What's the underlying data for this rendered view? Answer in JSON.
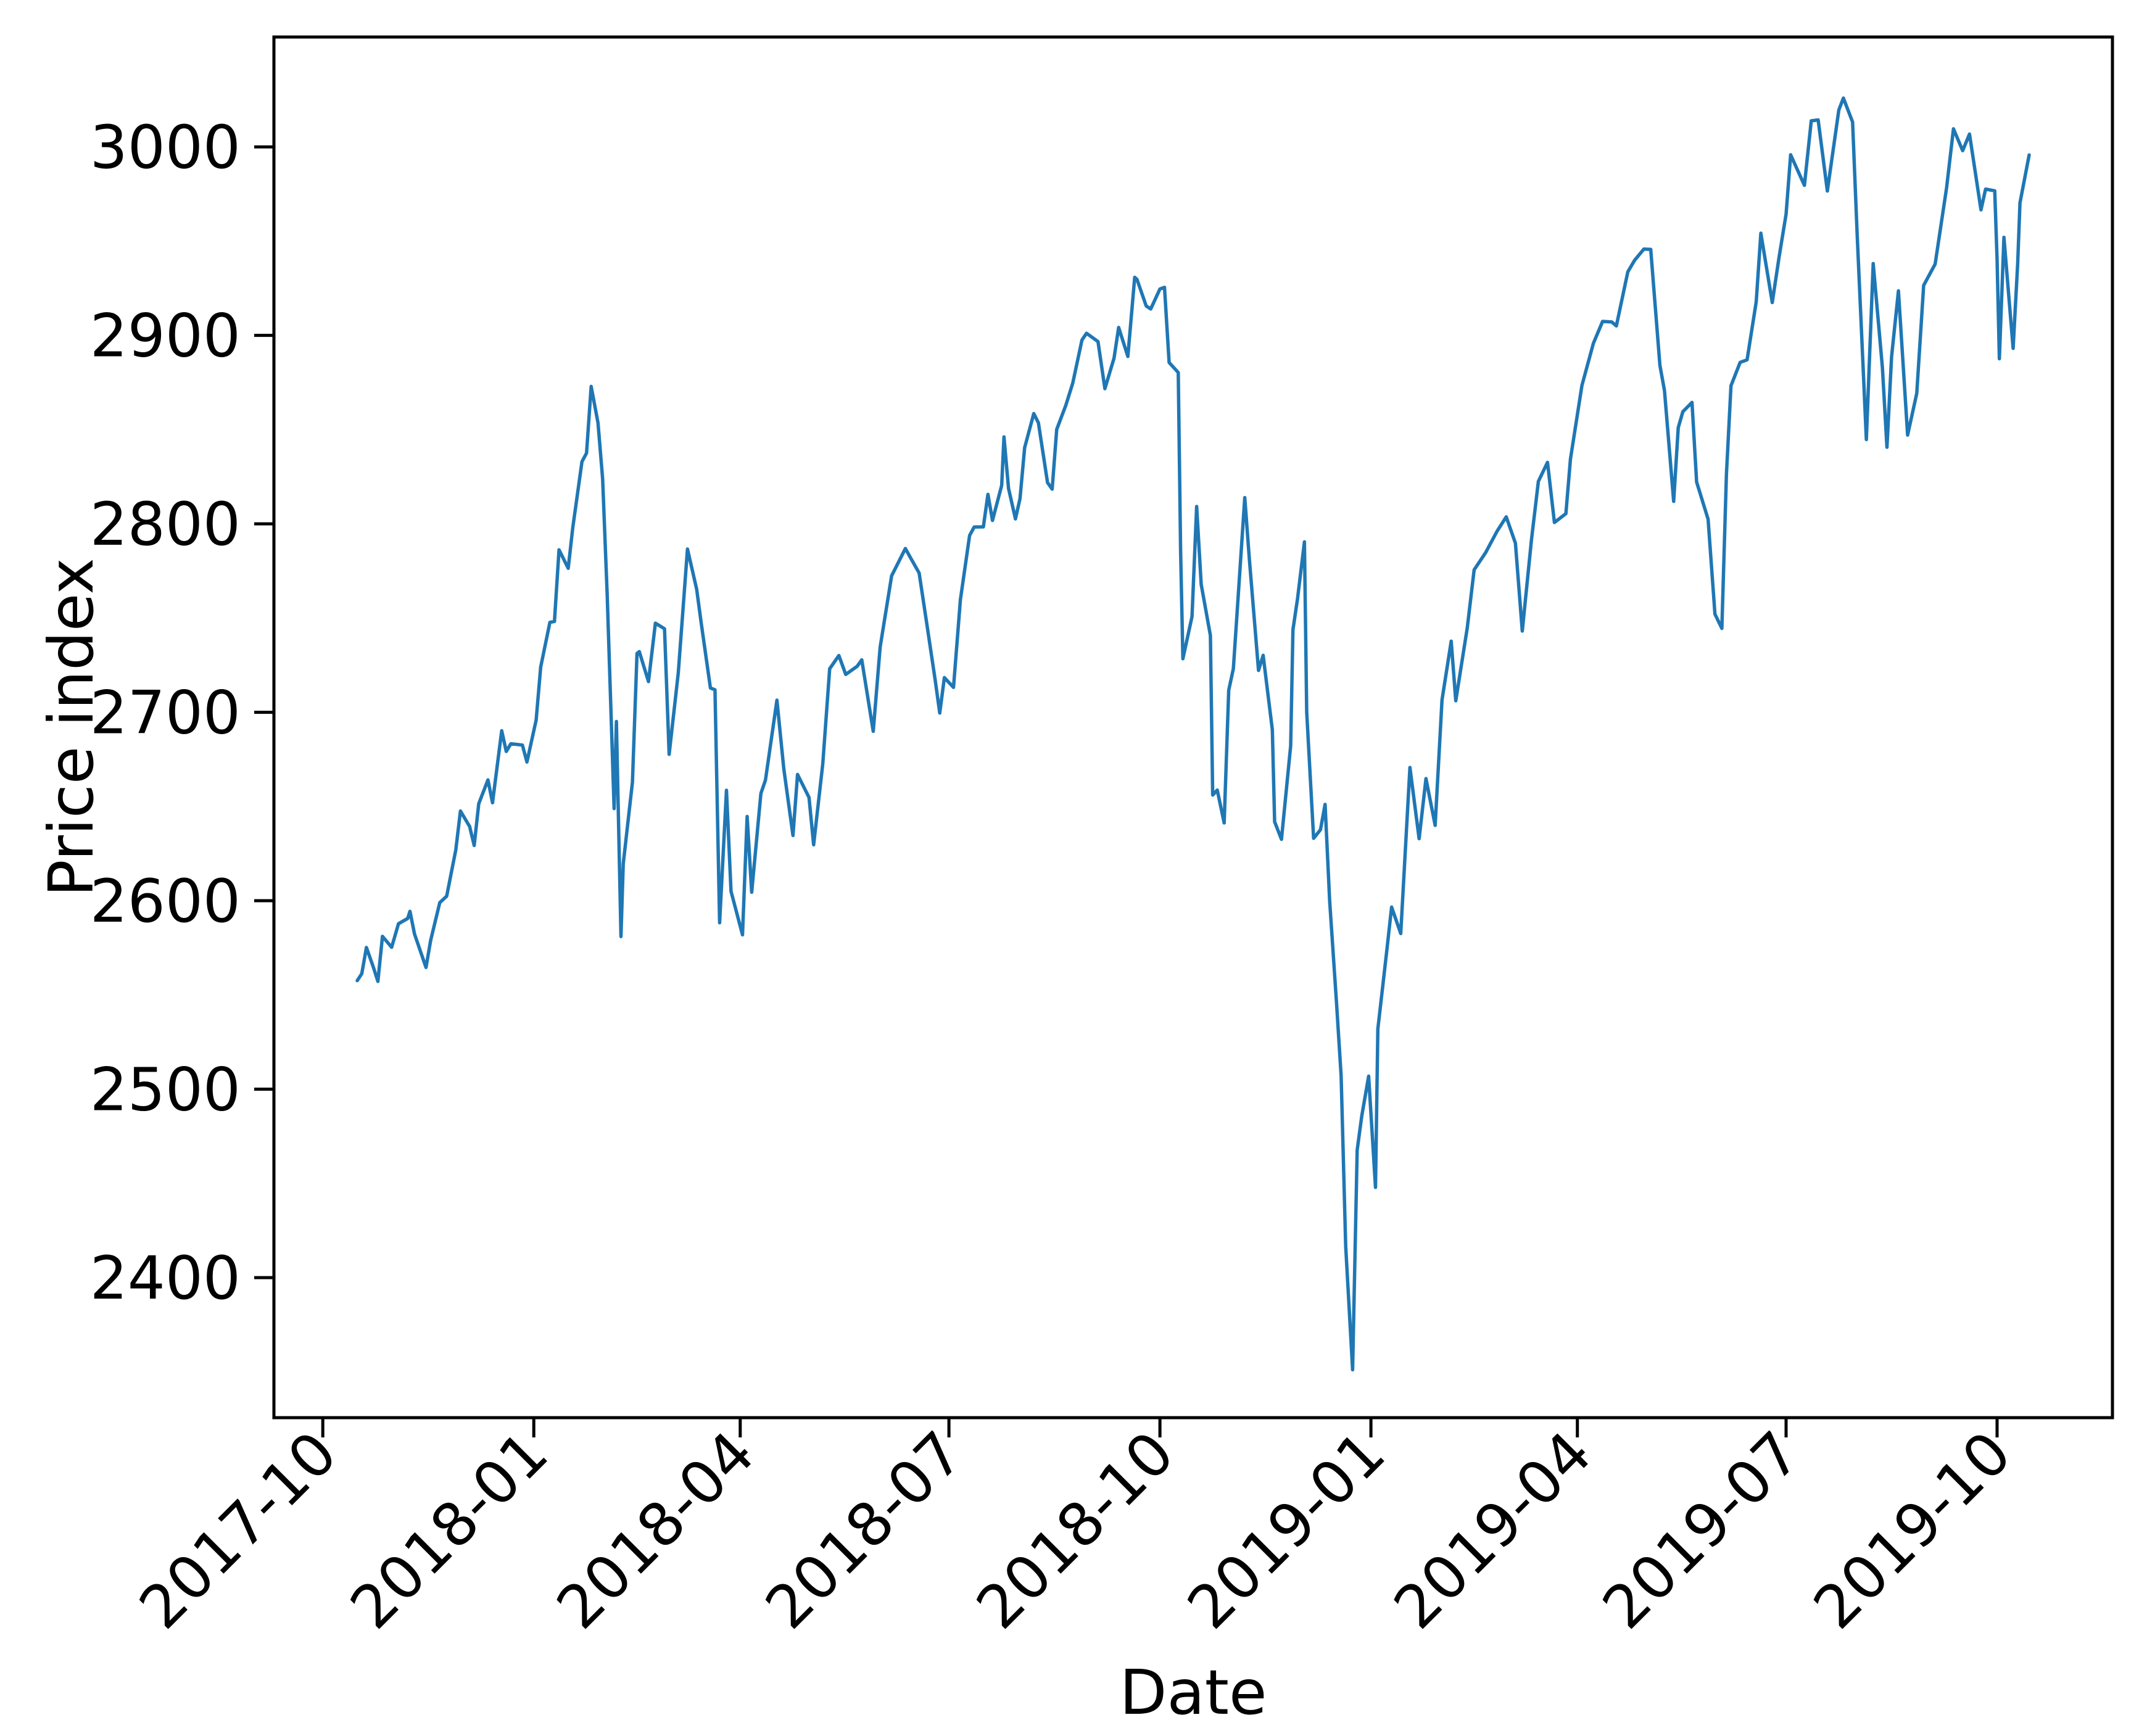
{
  "figure": {
    "background_color": "#ffffff",
    "line_color": "#1f77b4",
    "axis_color": "#000000"
  },
  "chart_data": {
    "type": "line",
    "title": "",
    "xlabel": "Date",
    "ylabel": "Price index",
    "grid": false,
    "legend": null,
    "ylim": [
      2325.7,
      3058.3
    ],
    "y_ticks": [
      2400,
      2500,
      2600,
      2700,
      2800,
      2900,
      3000
    ],
    "x_ticks": [
      {
        "date": "2017-10-01",
        "label": "2017-10"
      },
      {
        "date": "2018-01-01",
        "label": "2018-01"
      },
      {
        "date": "2018-04-01",
        "label": "2018-04"
      },
      {
        "date": "2018-07-01",
        "label": "2018-07"
      },
      {
        "date": "2018-10-01",
        "label": "2018-10"
      },
      {
        "date": "2019-01-01",
        "label": "2019-01"
      },
      {
        "date": "2019-04-01",
        "label": "2019-04"
      },
      {
        "date": "2019-07-01",
        "label": "2019-07"
      },
      {
        "date": "2019-10-01",
        "label": "2019-10"
      }
    ],
    "series": [
      {
        "name": "price-index",
        "color": "#1f77b4",
        "points": [
          [
            "2017-10-16",
            2557.6
          ],
          [
            "2017-10-18",
            2561.3
          ],
          [
            "2017-10-20",
            2575.2
          ],
          [
            "2017-10-23",
            2564.9
          ],
          [
            "2017-10-25",
            2557.2
          ],
          [
            "2017-10-27",
            2581.1
          ],
          [
            "2017-10-31",
            2575.3
          ],
          [
            "2017-11-03",
            2587.8
          ],
          [
            "2017-11-07",
            2590.6
          ],
          [
            "2017-11-08",
            2594.4
          ],
          [
            "2017-11-10",
            2582.3
          ],
          [
            "2017-11-15",
            2564.6
          ],
          [
            "2017-11-17",
            2578.9
          ],
          [
            "2017-11-21",
            2599.0
          ],
          [
            "2017-11-24",
            2602.4
          ],
          [
            "2017-11-28",
            2627.0
          ],
          [
            "2017-11-30",
            2647.6
          ],
          [
            "2017-12-04",
            2639.4
          ],
          [
            "2017-12-06",
            2629.3
          ],
          [
            "2017-12-08",
            2651.5
          ],
          [
            "2017-12-12",
            2664.1
          ],
          [
            "2017-12-14",
            2652.0
          ],
          [
            "2017-12-18",
            2690.2
          ],
          [
            "2017-12-20",
            2679.2
          ],
          [
            "2017-12-22",
            2683.3
          ],
          [
            "2017-12-27",
            2682.6
          ],
          [
            "2017-12-29",
            2673.6
          ],
          [
            "2018-01-02",
            2695.8
          ],
          [
            "2018-01-04",
            2724.0
          ],
          [
            "2018-01-08",
            2747.7
          ],
          [
            "2018-01-10",
            2748.2
          ],
          [
            "2018-01-12",
            2786.2
          ],
          [
            "2018-01-16",
            2776.4
          ],
          [
            "2018-01-18",
            2798.0
          ],
          [
            "2018-01-22",
            2833.0
          ],
          [
            "2018-01-24",
            2837.5
          ],
          [
            "2018-01-26",
            2872.9
          ],
          [
            "2018-01-29",
            2853.5
          ],
          [
            "2018-01-31",
            2823.8
          ],
          [
            "2018-02-02",
            2762.1
          ],
          [
            "2018-02-05",
            2648.9
          ],
          [
            "2018-02-06",
            2695.1
          ],
          [
            "2018-02-08",
            2581.0
          ],
          [
            "2018-02-09",
            2619.6
          ],
          [
            "2018-02-13",
            2662.9
          ],
          [
            "2018-02-15",
            2731.2
          ],
          [
            "2018-02-16",
            2732.2
          ],
          [
            "2018-02-20",
            2716.3
          ],
          [
            "2018-02-23",
            2747.3
          ],
          [
            "2018-02-27",
            2744.3
          ],
          [
            "2018-03-01",
            2677.7
          ],
          [
            "2018-03-05",
            2720.9
          ],
          [
            "2018-03-09",
            2786.6
          ],
          [
            "2018-03-13",
            2765.3
          ],
          [
            "2018-03-15",
            2747.3
          ],
          [
            "2018-03-19",
            2712.9
          ],
          [
            "2018-03-21",
            2711.9
          ],
          [
            "2018-03-23",
            2588.3
          ],
          [
            "2018-03-26",
            2658.6
          ],
          [
            "2018-03-28",
            2605.0
          ],
          [
            "2018-04-02",
            2581.9
          ],
          [
            "2018-04-04",
            2644.7
          ],
          [
            "2018-04-06",
            2604.5
          ],
          [
            "2018-04-10",
            2656.9
          ],
          [
            "2018-04-12",
            2664.0
          ],
          [
            "2018-04-17",
            2706.4
          ],
          [
            "2018-04-20",
            2670.1
          ],
          [
            "2018-04-24",
            2634.6
          ],
          [
            "2018-04-26",
            2667.0
          ],
          [
            "2018-05-01",
            2654.8
          ],
          [
            "2018-05-03",
            2629.7
          ],
          [
            "2018-05-07",
            2672.6
          ],
          [
            "2018-05-10",
            2723.1
          ],
          [
            "2018-05-14",
            2730.1
          ],
          [
            "2018-05-17",
            2720.1
          ],
          [
            "2018-05-22",
            2724.4
          ],
          [
            "2018-05-24",
            2727.8
          ],
          [
            "2018-05-29",
            2689.9
          ],
          [
            "2018-06-01",
            2734.6
          ],
          [
            "2018-06-06",
            2772.4
          ],
          [
            "2018-06-12",
            2786.9
          ],
          [
            "2018-06-14",
            2782.5
          ],
          [
            "2018-06-18",
            2773.9
          ],
          [
            "2018-06-21",
            2749.8
          ],
          [
            "2018-06-25",
            2717.1
          ],
          [
            "2018-06-27",
            2699.6
          ],
          [
            "2018-06-29",
            2718.4
          ],
          [
            "2018-07-03",
            2713.2
          ],
          [
            "2018-07-06",
            2759.8
          ],
          [
            "2018-07-10",
            2793.8
          ],
          [
            "2018-07-12",
            2798.3
          ],
          [
            "2018-07-16",
            2798.4
          ],
          [
            "2018-07-18",
            2815.6
          ],
          [
            "2018-07-20",
            2801.8
          ],
          [
            "2018-07-24",
            2820.4
          ],
          [
            "2018-07-25",
            2846.1
          ],
          [
            "2018-07-27",
            2818.8
          ],
          [
            "2018-07-30",
            2802.6
          ],
          [
            "2018-08-01",
            2813.4
          ],
          [
            "2018-08-03",
            2840.4
          ],
          [
            "2018-08-07",
            2858.5
          ],
          [
            "2018-08-09",
            2853.6
          ],
          [
            "2018-08-13",
            2821.9
          ],
          [
            "2018-08-15",
            2818.4
          ],
          [
            "2018-08-17",
            2850.1
          ],
          [
            "2018-08-21",
            2863.0
          ],
          [
            "2018-08-24",
            2874.7
          ],
          [
            "2018-08-28",
            2897.5
          ],
          [
            "2018-08-30",
            2901.1
          ],
          [
            "2018-09-04",
            2896.7
          ],
          [
            "2018-09-07",
            2871.7
          ],
          [
            "2018-09-11",
            2887.9
          ],
          [
            "2018-09-13",
            2904.2
          ],
          [
            "2018-09-17",
            2888.8
          ],
          [
            "2018-09-20",
            2930.8
          ],
          [
            "2018-09-21",
            2929.7
          ],
          [
            "2018-09-25",
            2915.6
          ],
          [
            "2018-09-27",
            2914.0
          ],
          [
            "2018-10-01",
            2924.6
          ],
          [
            "2018-10-03",
            2925.5
          ],
          [
            "2018-10-05",
            2885.6
          ],
          [
            "2018-10-09",
            2880.3
          ],
          [
            "2018-10-10",
            2785.7
          ],
          [
            "2018-10-11",
            2728.4
          ],
          [
            "2018-10-15",
            2750.8
          ],
          [
            "2018-10-17",
            2809.2
          ],
          [
            "2018-10-19",
            2767.8
          ],
          [
            "2018-10-23",
            2740.7
          ],
          [
            "2018-10-24",
            2656.1
          ],
          [
            "2018-10-26",
            2658.7
          ],
          [
            "2018-10-29",
            2641.3
          ],
          [
            "2018-10-31",
            2711.7
          ],
          [
            "2018-11-02",
            2723.1
          ],
          [
            "2018-11-07",
            2813.9
          ],
          [
            "2018-11-09",
            2781.0
          ],
          [
            "2018-11-13",
            2722.2
          ],
          [
            "2018-11-15",
            2730.2
          ],
          [
            "2018-11-19",
            2690.7
          ],
          [
            "2018-11-20",
            2641.9
          ],
          [
            "2018-11-23",
            2632.6
          ],
          [
            "2018-11-27",
            2682.2
          ],
          [
            "2018-11-28",
            2743.8
          ],
          [
            "2018-11-30",
            2760.2
          ],
          [
            "2018-12-03",
            2790.4
          ],
          [
            "2018-12-04",
            2700.1
          ],
          [
            "2018-12-07",
            2633.1
          ],
          [
            "2018-12-10",
            2637.7
          ],
          [
            "2018-12-12",
            2651.1
          ],
          [
            "2018-12-14",
            2599.9
          ],
          [
            "2018-12-17",
            2545.9
          ],
          [
            "2018-12-19",
            2507.0
          ],
          [
            "2018-12-21",
            2416.6
          ],
          [
            "2018-12-24",
            2351.1
          ],
          [
            "2018-12-26",
            2467.7
          ],
          [
            "2018-12-28",
            2485.7
          ],
          [
            "2018-12-31",
            2506.9
          ],
          [
            "2019-01-03",
            2447.9
          ],
          [
            "2019-01-04",
            2531.9
          ],
          [
            "2019-01-08",
            2574.4
          ],
          [
            "2019-01-10",
            2596.6
          ],
          [
            "2019-01-14",
            2582.6
          ],
          [
            "2019-01-18",
            2670.7
          ],
          [
            "2019-01-22",
            2632.9
          ],
          [
            "2019-01-25",
            2664.8
          ],
          [
            "2019-01-29",
            2640.0
          ],
          [
            "2019-02-01",
            2706.5
          ],
          [
            "2019-02-05",
            2737.7
          ],
          [
            "2019-02-07",
            2706.1
          ],
          [
            "2019-02-12",
            2744.7
          ],
          [
            "2019-02-15",
            2775.6
          ],
          [
            "2019-02-20",
            2784.7
          ],
          [
            "2019-02-25",
            2796.1
          ],
          [
            "2019-03-01",
            2803.7
          ],
          [
            "2019-03-05",
            2789.7
          ],
          [
            "2019-03-08",
            2743.1
          ],
          [
            "2019-03-12",
            2791.5
          ],
          [
            "2019-03-15",
            2822.5
          ],
          [
            "2019-03-19",
            2832.6
          ],
          [
            "2019-03-22",
            2800.7
          ],
          [
            "2019-03-27",
            2805.4
          ],
          [
            "2019-03-29",
            2834.4
          ],
          [
            "2019-04-03",
            2873.4
          ],
          [
            "2019-04-08",
            2895.8
          ],
          [
            "2019-04-12",
            2907.4
          ],
          [
            "2019-04-16",
            2907.1
          ],
          [
            "2019-04-18",
            2905.0
          ],
          [
            "2019-04-23",
            2933.7
          ],
          [
            "2019-04-26",
            2939.9
          ],
          [
            "2019-04-30",
            2945.8
          ],
          [
            "2019-05-03",
            2945.6
          ],
          [
            "2019-05-07",
            2884.1
          ],
          [
            "2019-05-09",
            2870.7
          ],
          [
            "2019-05-13",
            2811.9
          ],
          [
            "2019-05-15",
            2851.0
          ],
          [
            "2019-05-17",
            2859.5
          ],
          [
            "2019-05-21",
            2864.4
          ],
          [
            "2019-05-23",
            2822.2
          ],
          [
            "2019-05-28",
            2802.4
          ],
          [
            "2019-05-31",
            2752.1
          ],
          [
            "2019-06-03",
            2744.5
          ],
          [
            "2019-06-05",
            2826.2
          ],
          [
            "2019-06-07",
            2873.3
          ],
          [
            "2019-06-11",
            2885.7
          ],
          [
            "2019-06-14",
            2887.0
          ],
          [
            "2019-06-18",
            2917.8
          ],
          [
            "2019-06-20",
            2954.2
          ],
          [
            "2019-06-25",
            2917.4
          ],
          [
            "2019-06-28",
            2941.8
          ],
          [
            "2019-07-01",
            2964.3
          ],
          [
            "2019-07-03",
            2995.8
          ],
          [
            "2019-07-09",
            2979.6
          ],
          [
            "2019-07-12",
            3013.8
          ],
          [
            "2019-07-15",
            3014.3
          ],
          [
            "2019-07-19",
            2976.6
          ],
          [
            "2019-07-24",
            3019.6
          ],
          [
            "2019-07-26",
            3025.9
          ],
          [
            "2019-07-30",
            3013.2
          ],
          [
            "2019-08-01",
            2953.6
          ],
          [
            "2019-08-05",
            2844.7
          ],
          [
            "2019-08-08",
            2938.1
          ],
          [
            "2019-08-12",
            2883.0
          ],
          [
            "2019-08-14",
            2840.6
          ],
          [
            "2019-08-16",
            2888.7
          ],
          [
            "2019-08-19",
            2923.6
          ],
          [
            "2019-08-23",
            2847.1
          ],
          [
            "2019-08-27",
            2869.2
          ],
          [
            "2019-08-30",
            2926.5
          ],
          [
            "2019-09-04",
            2937.8
          ],
          [
            "2019-09-09",
            2978.4
          ],
          [
            "2019-09-12",
            3009.6
          ],
          [
            "2019-09-16",
            2998.0
          ],
          [
            "2019-09-19",
            3006.8
          ],
          [
            "2019-09-24",
            2966.6
          ],
          [
            "2019-09-26",
            2977.6
          ],
          [
            "2019-09-30",
            2976.7
          ],
          [
            "2019-10-01",
            2940.3
          ],
          [
            "2019-10-02",
            2887.6
          ],
          [
            "2019-10-04",
            2952.0
          ],
          [
            "2019-10-08",
            2893.1
          ],
          [
            "2019-10-10",
            2938.1
          ],
          [
            "2019-10-11",
            2970.3
          ],
          [
            "2019-10-15",
            2995.7
          ]
        ]
      }
    ]
  }
}
